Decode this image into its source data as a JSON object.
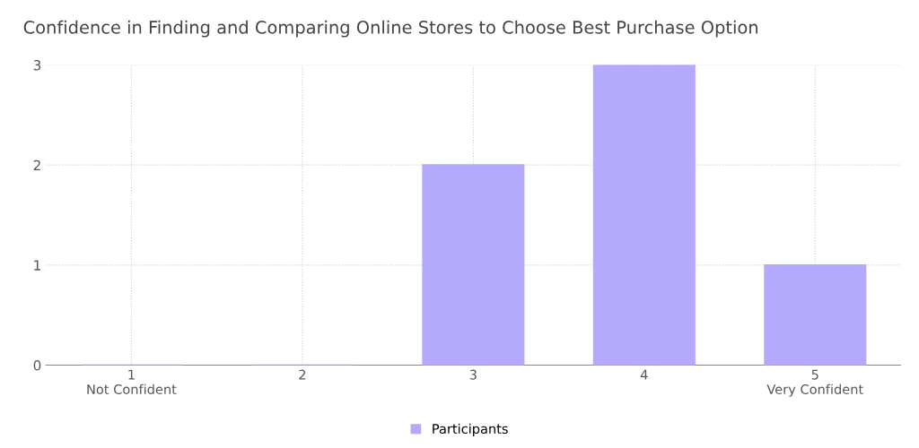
{
  "chart_data": {
    "type": "bar",
    "title": "Confidence in Finding and Comparing Online Stores to Choose Best Purchase Option",
    "categories": [
      "1\nNot Confident",
      "2",
      "3",
      "4",
      "5\nVery Confident"
    ],
    "series": [
      {
        "name": "Participants",
        "color": "#b3a9fd",
        "values": [
          0,
          0,
          2,
          3,
          1
        ]
      }
    ],
    "ylim": [
      0,
      3
    ],
    "yticks": [
      0,
      1,
      2,
      3
    ],
    "grid": true,
    "legend": "bottom"
  }
}
